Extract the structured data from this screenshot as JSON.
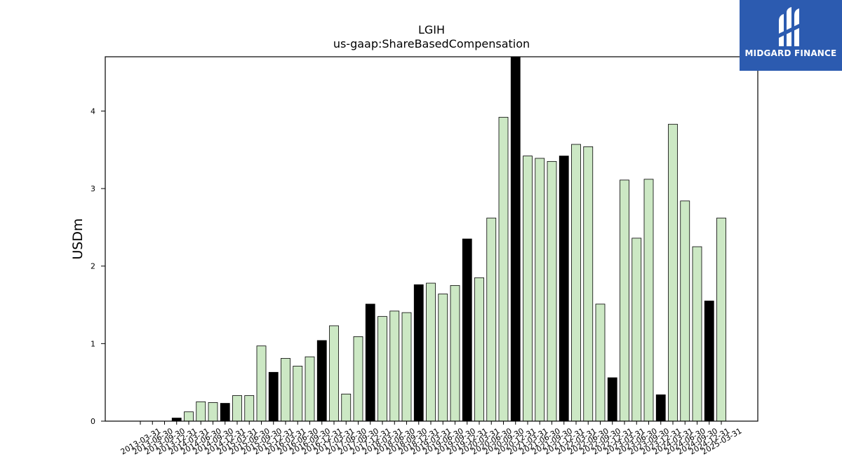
{
  "brand": {
    "name": "MIDGARD FINANCE",
    "color": "#2c5bb0"
  },
  "colors": {
    "bar_light": "#cce8c4",
    "bar_dark": "#000000",
    "edge": "#000000"
  },
  "chart_data": {
    "type": "bar",
    "title": "LGIH",
    "subtitle": "us-gaap:ShareBasedCompensation",
    "ylabel": "USDm",
    "xlabel": "",
    "ylim": [
      0,
      4.7
    ],
    "yticks": [
      0,
      1,
      2,
      3,
      4
    ],
    "grid": false,
    "categories": [
      "2013-03-31",
      "2013-06-30",
      "2013-09-30",
      "2013-12-31",
      "2014-03-31",
      "2014-06-30",
      "2014-09-30",
      "2014-12-31",
      "2015-03-31",
      "2015-06-30",
      "2015-09-30",
      "2015-12-31",
      "2016-03-31",
      "2016-06-30",
      "2016-09-30",
      "2016-12-31",
      "2017-03-31",
      "2017-06-30",
      "2017-09-30",
      "2017-12-31",
      "2018-03-31",
      "2018-06-30",
      "2018-09-30",
      "2018-12-31",
      "2019-03-31",
      "2019-06-30",
      "2019-09-30",
      "2019-12-31",
      "2020-03-31",
      "2020-06-30",
      "2020-09-30",
      "2020-12-31",
      "2021-03-31",
      "2021-06-30",
      "2021-09-30",
      "2021-12-31",
      "2022-03-31",
      "2022-06-30",
      "2022-09-30",
      "2022-12-31",
      "2023-03-31",
      "2023-06-30",
      "2023-09-30",
      "2023-12-31",
      "2024-03-31",
      "2024-06-30",
      "2024-09-30",
      "2024-12-31",
      "2025-03-31"
    ],
    "values": [
      0,
      0,
      0,
      0.04,
      0.12,
      0.25,
      0.24,
      0.23,
      0.33,
      0.33,
      0.97,
      0.63,
      0.81,
      0.71,
      0.83,
      1.04,
      1.23,
      0.35,
      1.09,
      1.51,
      1.35,
      1.42,
      1.4,
      1.76,
      1.78,
      1.64,
      1.75,
      2.35,
      1.85,
      2.62,
      3.92,
      4.72,
      3.42,
      3.39,
      3.35,
      3.42,
      3.57,
      3.54,
      1.51,
      0.56,
      3.11,
      2.36,
      3.12,
      0.34,
      3.83,
      2.84,
      2.25,
      1.55,
      2.62
    ],
    "highlight": [
      false,
      false,
      false,
      true,
      false,
      false,
      false,
      true,
      false,
      false,
      false,
      true,
      false,
      false,
      false,
      true,
      false,
      false,
      false,
      true,
      false,
      false,
      false,
      true,
      false,
      false,
      false,
      true,
      false,
      false,
      false,
      true,
      false,
      false,
      false,
      true,
      false,
      false,
      false,
      true,
      false,
      false,
      false,
      true,
      false,
      false,
      false,
      true,
      false
    ]
  }
}
